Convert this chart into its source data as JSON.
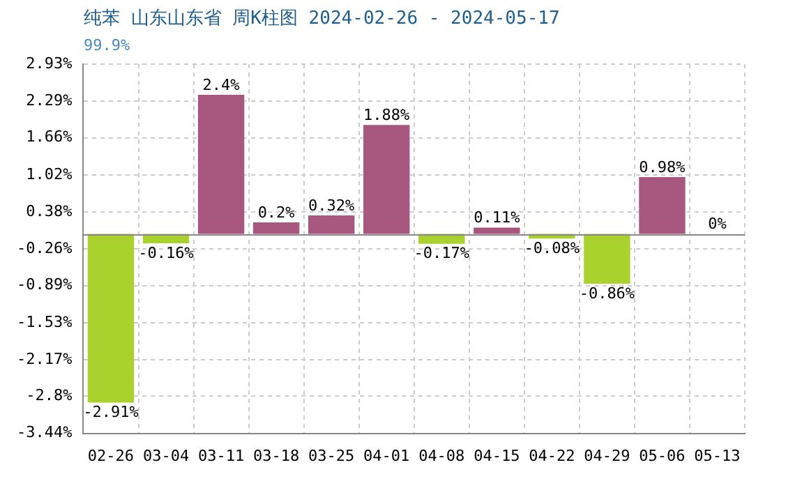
{
  "chart_data": {
    "type": "bar",
    "title": "纯苯 山东山东省 周K柱图 2024-02-26 - 2024-05-17",
    "subtitle": "99.9%",
    "categories": [
      "02-26",
      "03-04",
      "03-11",
      "03-18",
      "03-25",
      "04-01",
      "04-08",
      "04-15",
      "04-22",
      "04-29",
      "05-06",
      "05-13"
    ],
    "values": [
      -2.91,
      -0.16,
      2.4,
      0.2,
      0.32,
      1.88,
      -0.17,
      0.11,
      -0.08,
      -0.86,
      0.98,
      0
    ],
    "colors": [
      "#a9d22f",
      "#a9d22f",
      "#a8577e",
      "#a8577e",
      "#a8577e",
      "#a8577e",
      "#a9d22f",
      "#a8577e",
      "#a9d22f",
      "#a9d22f",
      "#a8577e",
      "#a8577e"
    ],
    "value_labels": [
      "-2.91%",
      "-0.16%",
      "2.4%",
      "0.2%",
      "0.32%",
      "1.88%",
      "-0.17%",
      "0.11%",
      "-0.08%",
      "-0.86%",
      "0.98%",
      "0%"
    ],
    "ylim": [
      -3.44,
      2.93
    ],
    "yticks": [
      {
        "value": 2.93,
        "label": "2.93%"
      },
      {
        "value": 2.29,
        "label": "2.29%"
      },
      {
        "value": 1.66,
        "label": "1.66%"
      },
      {
        "value": 1.02,
        "label": "1.02%"
      },
      {
        "value": 0.38,
        "label": "0.38%"
      },
      {
        "value": -0.26,
        "label": "-0.26%"
      },
      {
        "value": -0.89,
        "label": "-0.89%"
      },
      {
        "value": -1.53,
        "label": "-1.53%"
      },
      {
        "value": -2.17,
        "label": "-2.17%"
      },
      {
        "value": -2.8,
        "label": "-2.8%"
      },
      {
        "value": -3.44,
        "label": "-3.44%"
      }
    ],
    "grid": true,
    "legend": false
  }
}
